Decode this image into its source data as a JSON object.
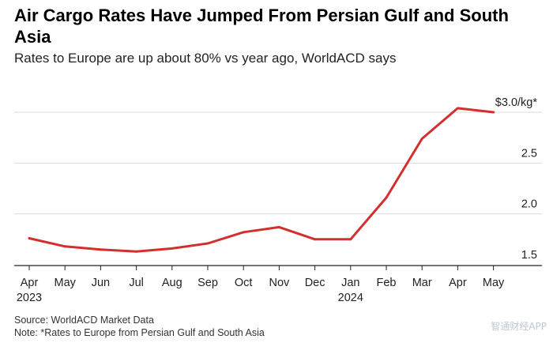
{
  "header": {
    "title": "Air Cargo Rates Have Jumped From Persian Gulf and South Asia",
    "subtitle": "Rates to Europe are up about 80% vs year ago, WorldACD says"
  },
  "footer": {
    "source": "Source: WorldACD Market Data",
    "note": "Note: *Rates to Europe from Persian Gulf and South Asia"
  },
  "watermark": "智通财经APP",
  "chart_data": {
    "type": "line",
    "categories": [
      "Apr",
      "May",
      "Jun",
      "Jul",
      "Aug",
      "Sep",
      "Oct",
      "Nov",
      "Dec",
      "Jan",
      "Feb",
      "Mar",
      "Apr",
      "May"
    ],
    "year_labels": [
      {
        "index": 0,
        "label": "2023"
      },
      {
        "index": 9,
        "label": "2024"
      }
    ],
    "series": [
      {
        "color": "#d32f2f",
        "values": [
          1.76,
          1.68,
          1.65,
          1.63,
          1.66,
          1.71,
          1.82,
          1.87,
          1.75,
          1.75,
          2.16,
          2.74,
          3.04,
          3.0
        ]
      }
    ],
    "yticks": [
      {
        "value": 1.5,
        "label": "1.5"
      },
      {
        "value": 2.0,
        "label": "2.0"
      },
      {
        "value": 2.5,
        "label": "2.5"
      },
      {
        "value": 3.0,
        "label": "$3.0/kg*"
      }
    ],
    "ylim": [
      1.5,
      3.2
    ],
    "grid": true,
    "colors": {
      "line": "#d32f2f",
      "grid": "#d9d9d9",
      "axis": "#222222"
    }
  }
}
